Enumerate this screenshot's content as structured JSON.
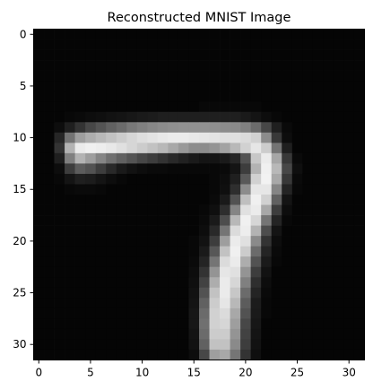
{
  "chart_data": {
    "type": "heatmap",
    "title": "Reconstructed MNIST Image",
    "xlabel": "",
    "ylabel": "",
    "colormap": "gray",
    "value_range": [
      0,
      1
    ],
    "grid": false,
    "xlim": [
      -0.5,
      31.5
    ],
    "ylim": [
      31.5,
      -0.5
    ],
    "x_ticks": [
      0,
      5,
      10,
      15,
      20,
      25,
      30
    ],
    "y_ticks": [
      0,
      5,
      10,
      15,
      20,
      25,
      30
    ],
    "rows": 32,
    "cols": 32,
    "values": [
      [
        0.02,
        0.02,
        0.02,
        0.02,
        0.02,
        0.02,
        0.02,
        0.02,
        0.02,
        0.02,
        0.02,
        0.02,
        0.02,
        0.02,
        0.02,
        0.02,
        0.02,
        0.02,
        0.02,
        0.02,
        0.02,
        0.02,
        0.02,
        0.02,
        0.02,
        0.02,
        0.02,
        0.02,
        0.02,
        0.02,
        0.02,
        0.02
      ],
      [
        0.02,
        0.02,
        0.02,
        0.02,
        0.02,
        0.02,
        0.02,
        0.02,
        0.02,
        0.02,
        0.02,
        0.02,
        0.02,
        0.02,
        0.02,
        0.02,
        0.02,
        0.02,
        0.02,
        0.02,
        0.02,
        0.02,
        0.02,
        0.02,
        0.02,
        0.02,
        0.02,
        0.02,
        0.02,
        0.02,
        0.02,
        0.02
      ],
      [
        0.02,
        0.02,
        0.02,
        0.02,
        0.02,
        0.02,
        0.02,
        0.02,
        0.02,
        0.02,
        0.02,
        0.02,
        0.02,
        0.02,
        0.02,
        0.02,
        0.02,
        0.02,
        0.02,
        0.02,
        0.02,
        0.02,
        0.02,
        0.02,
        0.02,
        0.02,
        0.02,
        0.02,
        0.02,
        0.02,
        0.02,
        0.02
      ],
      [
        0.02,
        0.02,
        0.02,
        0.02,
        0.02,
        0.02,
        0.02,
        0.02,
        0.02,
        0.02,
        0.02,
        0.02,
        0.02,
        0.02,
        0.02,
        0.02,
        0.02,
        0.02,
        0.02,
        0.02,
        0.02,
        0.02,
        0.02,
        0.02,
        0.02,
        0.02,
        0.02,
        0.02,
        0.02,
        0.02,
        0.02,
        0.02
      ],
      [
        0.02,
        0.02,
        0.02,
        0.02,
        0.02,
        0.02,
        0.02,
        0.02,
        0.02,
        0.02,
        0.02,
        0.02,
        0.02,
        0.02,
        0.02,
        0.02,
        0.02,
        0.02,
        0.02,
        0.02,
        0.02,
        0.02,
        0.02,
        0.02,
        0.02,
        0.02,
        0.02,
        0.02,
        0.02,
        0.02,
        0.02,
        0.02
      ],
      [
        0.02,
        0.02,
        0.02,
        0.02,
        0.02,
        0.02,
        0.02,
        0.02,
        0.02,
        0.02,
        0.02,
        0.02,
        0.02,
        0.02,
        0.02,
        0.02,
        0.02,
        0.02,
        0.02,
        0.02,
        0.02,
        0.02,
        0.02,
        0.02,
        0.02,
        0.02,
        0.02,
        0.02,
        0.02,
        0.02,
        0.02,
        0.02
      ],
      [
        0.02,
        0.02,
        0.02,
        0.02,
        0.02,
        0.02,
        0.02,
        0.02,
        0.02,
        0.02,
        0.02,
        0.02,
        0.02,
        0.02,
        0.02,
        0.02,
        0.02,
        0.02,
        0.02,
        0.02,
        0.02,
        0.02,
        0.02,
        0.02,
        0.02,
        0.02,
        0.02,
        0.02,
        0.02,
        0.02,
        0.02,
        0.02
      ],
      [
        0.02,
        0.02,
        0.02,
        0.02,
        0.02,
        0.02,
        0.02,
        0.02,
        0.02,
        0.02,
        0.02,
        0.02,
        0.02,
        0.02,
        0.02,
        0.02,
        0.03,
        0.03,
        0.03,
        0.03,
        0.03,
        0.03,
        0.02,
        0.02,
        0.02,
        0.02,
        0.02,
        0.02,
        0.02,
        0.02,
        0.02,
        0.02
      ],
      [
        0.02,
        0.02,
        0.02,
        0.03,
        0.04,
        0.05,
        0.06,
        0.07,
        0.08,
        0.09,
        0.1,
        0.11,
        0.12,
        0.12,
        0.12,
        0.12,
        0.12,
        0.12,
        0.12,
        0.12,
        0.1,
        0.08,
        0.05,
        0.03,
        0.02,
        0.02,
        0.02,
        0.02,
        0.02,
        0.02,
        0.02,
        0.02
      ],
      [
        0.02,
        0.02,
        0.05,
        0.12,
        0.2,
        0.28,
        0.33,
        0.38,
        0.42,
        0.47,
        0.5,
        0.53,
        0.55,
        0.56,
        0.57,
        0.57,
        0.57,
        0.56,
        0.55,
        0.54,
        0.5,
        0.42,
        0.28,
        0.12,
        0.04,
        0.02,
        0.02,
        0.02,
        0.02,
        0.02,
        0.02,
        0.02
      ],
      [
        0.02,
        0.02,
        0.15,
        0.45,
        0.62,
        0.68,
        0.72,
        0.76,
        0.8,
        0.84,
        0.87,
        0.89,
        0.91,
        0.92,
        0.92,
        0.91,
        0.9,
        0.89,
        0.88,
        0.88,
        0.86,
        0.82,
        0.55,
        0.22,
        0.05,
        0.02,
        0.02,
        0.02,
        0.02,
        0.02,
        0.02,
        0.02
      ],
      [
        0.02,
        0.02,
        0.2,
        0.7,
        0.92,
        0.94,
        0.93,
        0.91,
        0.88,
        0.84,
        0.8,
        0.76,
        0.72,
        0.66,
        0.6,
        0.55,
        0.55,
        0.58,
        0.64,
        0.72,
        0.82,
        0.9,
        0.8,
        0.45,
        0.12,
        0.02,
        0.02,
        0.02,
        0.02,
        0.02,
        0.02,
        0.02
      ],
      [
        0.02,
        0.02,
        0.12,
        0.5,
        0.7,
        0.62,
        0.52,
        0.44,
        0.38,
        0.33,
        0.28,
        0.24,
        0.2,
        0.16,
        0.13,
        0.1,
        0.08,
        0.08,
        0.1,
        0.15,
        0.32,
        0.78,
        0.92,
        0.65,
        0.22,
        0.04,
        0.02,
        0.02,
        0.02,
        0.02,
        0.02,
        0.02
      ],
      [
        0.02,
        0.02,
        0.05,
        0.24,
        0.36,
        0.32,
        0.24,
        0.16,
        0.1,
        0.07,
        0.05,
        0.04,
        0.04,
        0.03,
        0.03,
        0.03,
        0.03,
        0.03,
        0.04,
        0.08,
        0.24,
        0.7,
        0.94,
        0.72,
        0.28,
        0.06,
        0.02,
        0.02,
        0.02,
        0.02,
        0.02,
        0.02
      ],
      [
        0.02,
        0.02,
        0.03,
        0.08,
        0.12,
        0.11,
        0.08,
        0.05,
        0.03,
        0.02,
        0.02,
        0.02,
        0.02,
        0.02,
        0.02,
        0.02,
        0.02,
        0.03,
        0.05,
        0.12,
        0.35,
        0.82,
        0.95,
        0.66,
        0.22,
        0.04,
        0.02,
        0.02,
        0.02,
        0.02,
        0.02,
        0.02
      ],
      [
        0.02,
        0.02,
        0.02,
        0.03,
        0.04,
        0.04,
        0.03,
        0.02,
        0.02,
        0.02,
        0.02,
        0.02,
        0.02,
        0.02,
        0.02,
        0.02,
        0.02,
        0.03,
        0.06,
        0.18,
        0.55,
        0.9,
        0.9,
        0.52,
        0.14,
        0.03,
        0.02,
        0.02,
        0.02,
        0.02,
        0.02,
        0.02
      ],
      [
        0.02,
        0.02,
        0.02,
        0.02,
        0.02,
        0.02,
        0.02,
        0.02,
        0.02,
        0.02,
        0.02,
        0.02,
        0.02,
        0.02,
        0.02,
        0.02,
        0.02,
        0.04,
        0.1,
        0.32,
        0.75,
        0.94,
        0.82,
        0.38,
        0.08,
        0.02,
        0.02,
        0.02,
        0.02,
        0.02,
        0.02,
        0.02
      ],
      [
        0.02,
        0.02,
        0.02,
        0.02,
        0.02,
        0.02,
        0.02,
        0.02,
        0.02,
        0.02,
        0.02,
        0.02,
        0.02,
        0.02,
        0.02,
        0.02,
        0.03,
        0.06,
        0.18,
        0.52,
        0.88,
        0.92,
        0.66,
        0.24,
        0.05,
        0.02,
        0.02,
        0.02,
        0.02,
        0.02,
        0.02,
        0.02
      ],
      [
        0.02,
        0.02,
        0.02,
        0.02,
        0.02,
        0.02,
        0.02,
        0.02,
        0.02,
        0.02,
        0.02,
        0.02,
        0.02,
        0.02,
        0.02,
        0.02,
        0.04,
        0.1,
        0.3,
        0.72,
        0.94,
        0.84,
        0.46,
        0.14,
        0.03,
        0.02,
        0.02,
        0.02,
        0.02,
        0.02,
        0.02,
        0.02
      ],
      [
        0.02,
        0.02,
        0.02,
        0.02,
        0.02,
        0.02,
        0.02,
        0.02,
        0.02,
        0.02,
        0.02,
        0.02,
        0.02,
        0.02,
        0.02,
        0.02,
        0.05,
        0.16,
        0.46,
        0.86,
        0.93,
        0.7,
        0.3,
        0.08,
        0.02,
        0.02,
        0.02,
        0.02,
        0.02,
        0.02,
        0.02,
        0.02
      ],
      [
        0.02,
        0.02,
        0.02,
        0.02,
        0.02,
        0.02,
        0.02,
        0.02,
        0.02,
        0.02,
        0.02,
        0.02,
        0.02,
        0.02,
        0.02,
        0.03,
        0.07,
        0.24,
        0.62,
        0.92,
        0.88,
        0.54,
        0.2,
        0.05,
        0.02,
        0.02,
        0.02,
        0.02,
        0.02,
        0.02,
        0.02,
        0.02
      ],
      [
        0.02,
        0.02,
        0.02,
        0.02,
        0.02,
        0.02,
        0.02,
        0.02,
        0.02,
        0.02,
        0.02,
        0.02,
        0.02,
        0.02,
        0.02,
        0.03,
        0.1,
        0.34,
        0.76,
        0.94,
        0.8,
        0.42,
        0.14,
        0.04,
        0.02,
        0.02,
        0.02,
        0.02,
        0.02,
        0.02,
        0.02,
        0.02
      ],
      [
        0.02,
        0.02,
        0.02,
        0.02,
        0.02,
        0.02,
        0.02,
        0.02,
        0.02,
        0.02,
        0.02,
        0.02,
        0.02,
        0.02,
        0.02,
        0.04,
        0.14,
        0.46,
        0.86,
        0.92,
        0.68,
        0.32,
        0.1,
        0.03,
        0.02,
        0.02,
        0.02,
        0.02,
        0.02,
        0.02,
        0.02,
        0.02
      ],
      [
        0.02,
        0.02,
        0.02,
        0.02,
        0.02,
        0.02,
        0.02,
        0.02,
        0.02,
        0.02,
        0.02,
        0.02,
        0.02,
        0.02,
        0.02,
        0.05,
        0.2,
        0.58,
        0.9,
        0.88,
        0.58,
        0.24,
        0.07,
        0.02,
        0.02,
        0.02,
        0.02,
        0.02,
        0.02,
        0.02,
        0.02,
        0.02
      ],
      [
        0.02,
        0.02,
        0.02,
        0.02,
        0.02,
        0.02,
        0.02,
        0.02,
        0.02,
        0.02,
        0.02,
        0.02,
        0.02,
        0.02,
        0.02,
        0.06,
        0.26,
        0.68,
        0.92,
        0.84,
        0.5,
        0.18,
        0.05,
        0.02,
        0.02,
        0.02,
        0.02,
        0.02,
        0.02,
        0.02,
        0.02,
        0.02
      ],
      [
        0.02,
        0.02,
        0.02,
        0.02,
        0.02,
        0.02,
        0.02,
        0.02,
        0.02,
        0.02,
        0.02,
        0.02,
        0.02,
        0.02,
        0.02,
        0.07,
        0.32,
        0.76,
        0.92,
        0.78,
        0.42,
        0.14,
        0.04,
        0.02,
        0.02,
        0.02,
        0.02,
        0.02,
        0.02,
        0.02,
        0.02,
        0.02
      ],
      [
        0.02,
        0.02,
        0.02,
        0.02,
        0.02,
        0.02,
        0.02,
        0.02,
        0.02,
        0.02,
        0.02,
        0.02,
        0.02,
        0.02,
        0.02,
        0.08,
        0.38,
        0.8,
        0.9,
        0.72,
        0.36,
        0.11,
        0.03,
        0.02,
        0.02,
        0.02,
        0.02,
        0.02,
        0.02,
        0.02,
        0.02,
        0.02
      ],
      [
        0.02,
        0.02,
        0.02,
        0.02,
        0.02,
        0.02,
        0.02,
        0.02,
        0.02,
        0.02,
        0.02,
        0.02,
        0.02,
        0.02,
        0.02,
        0.09,
        0.42,
        0.82,
        0.86,
        0.66,
        0.32,
        0.1,
        0.03,
        0.02,
        0.02,
        0.02,
        0.02,
        0.02,
        0.02,
        0.02,
        0.02,
        0.02
      ],
      [
        0.02,
        0.02,
        0.02,
        0.02,
        0.02,
        0.02,
        0.02,
        0.02,
        0.02,
        0.02,
        0.02,
        0.02,
        0.02,
        0.02,
        0.02,
        0.09,
        0.44,
        0.82,
        0.84,
        0.62,
        0.28,
        0.09,
        0.02,
        0.02,
        0.02,
        0.02,
        0.02,
        0.02,
        0.02,
        0.02,
        0.02,
        0.02
      ],
      [
        0.02,
        0.02,
        0.02,
        0.02,
        0.02,
        0.02,
        0.02,
        0.02,
        0.02,
        0.02,
        0.02,
        0.02,
        0.02,
        0.02,
        0.02,
        0.08,
        0.42,
        0.8,
        0.8,
        0.58,
        0.26,
        0.08,
        0.02,
        0.02,
        0.02,
        0.02,
        0.02,
        0.02,
        0.02,
        0.02,
        0.02,
        0.02
      ],
      [
        0.02,
        0.02,
        0.02,
        0.02,
        0.02,
        0.02,
        0.02,
        0.02,
        0.02,
        0.02,
        0.02,
        0.02,
        0.02,
        0.02,
        0.02,
        0.07,
        0.38,
        0.76,
        0.76,
        0.54,
        0.24,
        0.07,
        0.02,
        0.02,
        0.02,
        0.02,
        0.02,
        0.02,
        0.02,
        0.02,
        0.02,
        0.02
      ],
      [
        0.02,
        0.02,
        0.02,
        0.02,
        0.02,
        0.02,
        0.02,
        0.02,
        0.02,
        0.02,
        0.02,
        0.02,
        0.02,
        0.02,
        0.02,
        0.05,
        0.28,
        0.62,
        0.66,
        0.46,
        0.2,
        0.06,
        0.02,
        0.02,
        0.02,
        0.02,
        0.02,
        0.02,
        0.02,
        0.02,
        0.02,
        0.02
      ]
    ]
  }
}
